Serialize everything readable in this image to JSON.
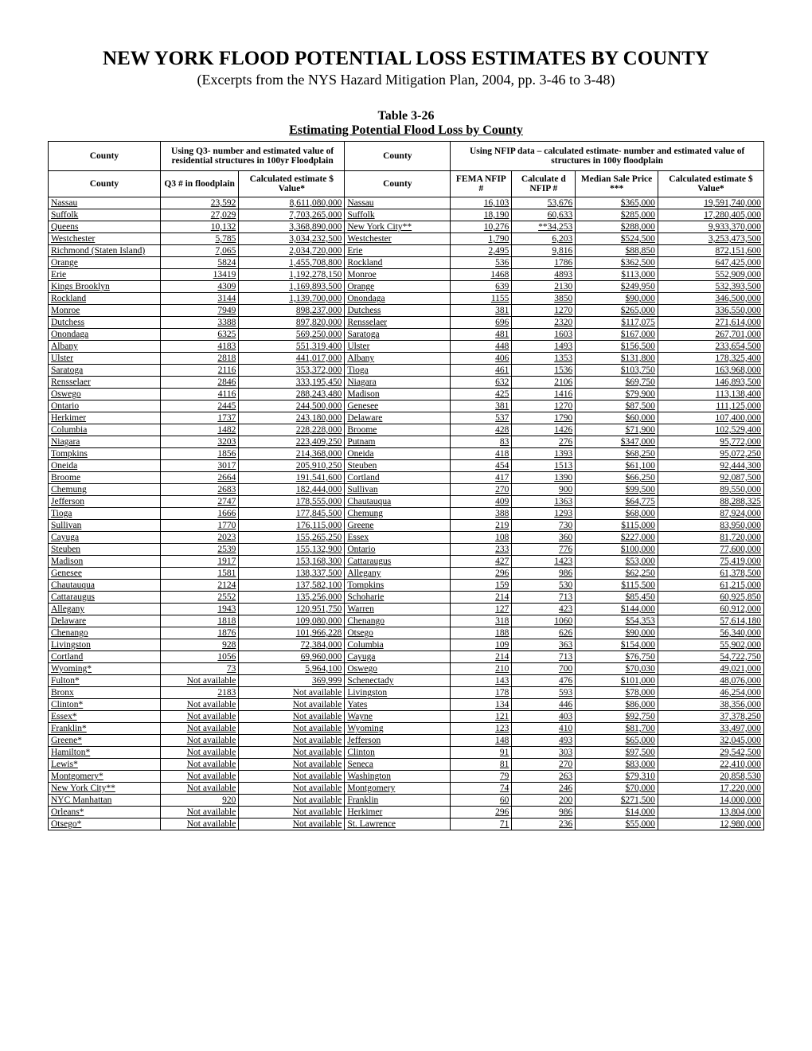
{
  "title": "NEW YORK FLOOD POTENTIAL LOSS ESTIMATES BY COUNTY",
  "subtitle": "(Excerpts from the NYS Hazard Mitigation Plan, 2004, pp. 3-46 to 3-48)",
  "table_label": "Table 3-26",
  "table_caption": "Estimating Potential Flood Loss by County",
  "header_top": {
    "county_left": "County",
    "q3_block": "Using Q3- number and estimated value of residential structures in 100yr Floodplain",
    "county_right": "County",
    "nfip_block": "Using NFIP data – calculated estimate-  number and estimated value of structures in 100y floodplain"
  },
  "header_sub": {
    "county_left": "County",
    "q3": "Q3 # in floodplain",
    "calc1": "Calculated estimate\n$ Value*",
    "county_right": "County",
    "fema": "FEMA NFIP #",
    "calcd": "Calculate d NFIP #",
    "median": "Median Sale Price ***",
    "calc2": "Calculated estimate\n$ Value*"
  },
  "rows": [
    {
      "cl": "Nassau",
      "q3": "23,592",
      "v1": "8,611,080,000",
      "cr": "Nassau",
      "fema": "16,103",
      "cd": "53,676",
      "mp": "$365,000",
      "v2": "19,591,740,000"
    },
    {
      "cl": "Suffolk",
      "q3": "27,029",
      "v1": "7,703,265,000",
      "cr": "Suffolk",
      "fema": "18,190",
      "cd": "60,633",
      "mp": "$285,000",
      "v2": "17,280,405,000"
    },
    {
      "cl": "Queens",
      "q3": "10,132",
      "v1": "3,368,890,000",
      "cr": "New York City**",
      "fema": "10,276",
      "cd": "**34,253",
      "mp": "$288,000",
      "v2": "9,933,370,000"
    },
    {
      "cl": "Westchester",
      "q3": "5,785",
      "v1": "3,034,232,500",
      "cr": "Westchester",
      "fema": "1,790",
      "cd": "6,203",
      "mp": "$524,500",
      "v2": "3,253,473,500"
    },
    {
      "cl": "Richmond (Staten Island)",
      "q3": "7,065",
      "v1": "2,034,720,000",
      "cr": "Erie",
      "fema": "2,495",
      "cd": "9,816",
      "mp": "$88,850",
      "v2": "872,151,600"
    },
    {
      "cl": "Orange",
      "q3": "5824",
      "v1": "1,455,708,800",
      "cr": "Rockland",
      "fema": "536",
      "cd": "1786",
      "mp": "$362,500",
      "v2": "647,425,000"
    },
    {
      "cl": "Erie",
      "q3": "13419",
      "v1": "1,192,278,150",
      "cr": "Monroe",
      "fema": "1468",
      "cd": "4893",
      "mp": "$113,000",
      "v2": "552,909,000"
    },
    {
      "cl": "Kings Brooklyn",
      "q3": "4309",
      "v1": "1,169,893,500",
      "cr": "Orange",
      "fema": "639",
      "cd": "2130",
      "mp": "$249,950",
      "v2": "532,393,500"
    },
    {
      "cl": "Rockland",
      "q3": "3144",
      "v1": "1,139,700,000",
      "cr": "Onondaga",
      "fema": "1155",
      "cd": "3850",
      "mp": "$90,000",
      "v2": "346,500,000"
    },
    {
      "cl": "Monroe",
      "q3": "7949",
      "v1": "898,237,000",
      "cr": "Dutchess",
      "fema": "381",
      "cd": "1270",
      "mp": "$265,000",
      "v2": "336,550,000"
    },
    {
      "cl": "Dutchess",
      "q3": "3388",
      "v1": "897,820,000",
      "cr": "Rensselaer",
      "fema": "696",
      "cd": "2320",
      "mp": "$117,075",
      "v2": "271,614,000"
    },
    {
      "cl": "Onondaga",
      "q3": "6325",
      "v1": "569,250,000",
      "cr": "Saratoga",
      "fema": "481",
      "cd": "1603",
      "mp": "$167,000",
      "v2": "267,701,000"
    },
    {
      "cl": "Albany",
      "q3": "4183",
      "v1": "551,319,400",
      "cr": "Ulster",
      "fema": "448",
      "cd": "1493",
      "mp": "$156,500",
      "v2": "233,654,500"
    },
    {
      "cl": "Ulster",
      "q3": "2818",
      "v1": "441,017,000",
      "cr": "Albany",
      "fema": "406",
      "cd": "1353",
      "mp": "$131,800",
      "v2": "178,325,400"
    },
    {
      "cl": "Saratoga",
      "q3": "2116",
      "v1": "353,372,000",
      "cr": "Tioga",
      "fema": "461",
      "cd": "1536",
      "mp": "$103,750",
      "v2": "163,968,000"
    },
    {
      "cl": "Rensselaer",
      "q3": "2846",
      "v1": "333,195,450",
      "cr": "Niagara",
      "fema": "632",
      "cd": "2106",
      "mp": "$69,750",
      "v2": "146,893,500"
    },
    {
      "cl": "Oswego",
      "q3": "4116",
      "v1": "288,243,480",
      "cr": "Madison",
      "fema": "425",
      "cd": "1416",
      "mp": "$79,900",
      "v2": "113,138,400"
    },
    {
      "cl": "Ontario",
      "q3": "2445",
      "v1": "244,500,000",
      "cr": "Genesee",
      "fema": "381",
      "cd": "1270",
      "mp": "$87,500",
      "v2": "111,125,000"
    },
    {
      "cl": "Herkimer",
      "q3": "1737",
      "v1": "243,180,000",
      "cr": "Delaware",
      "fema": "537",
      "cd": "1790",
      "mp": "$60,000",
      "v2": "107,400,000"
    },
    {
      "cl": "Columbia",
      "q3": "1482",
      "v1": "228,228,000",
      "cr": "Broome",
      "fema": "428",
      "cd": "1426",
      "mp": "$71,900",
      "v2": "102,529,400"
    },
    {
      "cl": "Niagara",
      "q3": "3203",
      "v1": "223,409,250",
      "cr": "Putnam",
      "fema": "83",
      "cd": "276",
      "mp": "$347,000",
      "v2": "95,772,000"
    },
    {
      "cl": "Tompkins",
      "q3": "1856",
      "v1": "214,368,000",
      "cr": "Oneida",
      "fema": "418",
      "cd": "1393",
      "mp": "$68,250",
      "v2": "95,072,250"
    },
    {
      "cl": "Oneida",
      "q3": "3017",
      "v1": "205,910,250",
      "cr": "Steuben",
      "fema": "454",
      "cd": "1513",
      "mp": "$61,100",
      "v2": "92,444,300"
    },
    {
      "cl": "Broome",
      "q3": "2664",
      "v1": "191,541,600",
      "cr": "Cortland",
      "fema": "417",
      "cd": "1390",
      "mp": "$66,250",
      "v2": "92,087,500"
    },
    {
      "cl": "Chemung",
      "q3": "2683",
      "v1": "182,444,000",
      "cr": "Sullivan",
      "fema": "270",
      "cd": "900",
      "mp": "$99,500",
      "v2": "89,550,000"
    },
    {
      "cl": "Jefferson",
      "q3": "2747",
      "v1": "178,555,000",
      "cr": "Chautauqua",
      "fema": "409",
      "cd": "1363",
      "mp": "$64,775",
      "v2": "88,288,325"
    },
    {
      "cl": "Tioga",
      "q3": "1666",
      "v1": "177,845,500",
      "cr": "Chemung",
      "fema": "388",
      "cd": "1293",
      "mp": "$68,000",
      "v2": "87,924,000"
    },
    {
      "cl": "Sullivan",
      "q3": "1770",
      "v1": "176,115,000",
      "cr": "Greene",
      "fema": "219",
      "cd": "730",
      "mp": "$115,000",
      "v2": "83,950,000"
    },
    {
      "cl": "Cayuga",
      "q3": "2023",
      "v1": "155,265,250",
      "cr": "Essex",
      "fema": "108",
      "cd": "360",
      "mp": "$227,000",
      "v2": "81,720,000"
    },
    {
      "cl": "Steuben",
      "q3": "2539",
      "v1": "155,132,900",
      "cr": "Ontario",
      "fema": "233",
      "cd": "776",
      "mp": "$100,000",
      "v2": "77,600,000"
    },
    {
      "cl": "Madison",
      "q3": "1917",
      "v1": "153,168,300",
      "cr": "Cattaraugus",
      "fema": "427",
      "cd": "1423",
      "mp": "$53,000",
      "v2": "75,419,000"
    },
    {
      "cl": "Genesee",
      "q3": "1581",
      "v1": "138,337,500",
      "cr": "Allegany",
      "fema": "296",
      "cd": "986",
      "mp": "$62,250",
      "v2": "61,378,500"
    },
    {
      "cl": "Chautauqua",
      "q3": "2124",
      "v1": "137,582,100",
      "cr": "Tompkins",
      "fema": "159",
      "cd": "530",
      "mp": "$115,500",
      "v2": "61,215,000"
    },
    {
      "cl": "Cattaraugus",
      "q3": "2552",
      "v1": "135,256,000",
      "cr": "Schoharie",
      "fema": "214",
      "cd": "713",
      "mp": "$85,450",
      "v2": "60,925,850"
    },
    {
      "cl": "Allegany",
      "q3": "1943",
      "v1": "120,951,750",
      "cr": "Warren",
      "fema": "127",
      "cd": "423",
      "mp": "$144,000",
      "v2": "60,912,000"
    },
    {
      "cl": "Delaware",
      "q3": "1818",
      "v1": "109,080,000",
      "cr": "Chenango",
      "fema": "318",
      "cd": "1060",
      "mp": "$54,353",
      "v2": "57,614,180"
    },
    {
      "cl": "Chenango",
      "q3": "1876",
      "v1": "101,966,228",
      "cr": "Otsego",
      "fema": "188",
      "cd": "626",
      "mp": "$90,000",
      "v2": "56,340,000"
    },
    {
      "cl": "Livingston",
      "q3": "928",
      "v1": "72,384,000",
      "cr": "Columbia",
      "fema": "109",
      "cd": "363",
      "mp": "$154,000",
      "v2": "55,902,000"
    },
    {
      "cl": "Cortland",
      "q3": "1056",
      "v1": "69,960,000",
      "cr": "Cayuga",
      "fema": "214",
      "cd": "713",
      "mp": "$76,750",
      "v2": "54,722,750"
    },
    {
      "cl": "Wyoming*",
      "q3": "73",
      "v1": "5,964,100",
      "cr": "Oswego",
      "fema": "210",
      "cd": "700",
      "mp": "$70,030",
      "v2": "49,021,000"
    },
    {
      "cl": "Fulton*",
      "q3": "Not available",
      "v1": "369,999",
      "cr": "Schenectady",
      "fema": "143",
      "cd": "476",
      "mp": "$101,000",
      "v2": "48,076,000"
    },
    {
      "cl": "Bronx",
      "q3": "2183",
      "v1": "Not available",
      "cr": "Livingston",
      "fema": "178",
      "cd": "593",
      "mp": "$78,000",
      "v2": "46,254,000"
    },
    {
      "cl": "Clinton*",
      "q3": "Not available",
      "v1": "Not available",
      "cr": "Yates",
      "fema": "134",
      "cd": "446",
      "mp": "$86,000",
      "v2": "38,356,000"
    },
    {
      "cl": "Essex*",
      "q3": "Not available",
      "v1": "Not available",
      "cr": "Wayne",
      "fema": "121",
      "cd": "403",
      "mp": "$92,750",
      "v2": "37,378,250"
    },
    {
      "cl": "Franklin*",
      "q3": "Not available",
      "v1": "Not available",
      "cr": "Wyoming",
      "fema": "123",
      "cd": "410",
      "mp": "$81,700",
      "v2": "33,497,000"
    },
    {
      "cl": "Greene*",
      "q3": "Not available",
      "v1": "Not available",
      "cr": "Jefferson",
      "fema": "148",
      "cd": "493",
      "mp": "$65,000",
      "v2": "32,045,000"
    },
    {
      "cl": "Hamilton*",
      "q3": "Not available",
      "v1": "Not available",
      "cr": "Clinton",
      "fema": "91",
      "cd": "303",
      "mp": "$97,500",
      "v2": "29,542,500"
    },
    {
      "cl": "Lewis*",
      "q3": "Not available",
      "v1": "Not available",
      "cr": "Seneca",
      "fema": "81",
      "cd": "270",
      "mp": "$83,000",
      "v2": "22,410,000"
    },
    {
      "cl": "Montgomery*",
      "q3": "Not available",
      "v1": "Not available",
      "cr": "Washington",
      "fema": "79",
      "cd": "263",
      "mp": "$79,310",
      "v2": "20,858,530"
    },
    {
      "cl": "New York City**",
      "q3": "Not available",
      "v1": "Not available",
      "cr": "Montgomery",
      "fema": "74",
      "cd": "246",
      "mp": "$70,000",
      "v2": "17,220,000"
    },
    {
      "cl": "NYC Manhattan",
      "q3": "920",
      "v1": "Not available",
      "cr": "Franklin",
      "fema": "60",
      "cd": "200",
      "mp": "$271,500",
      "v2": "14,000,000"
    },
    {
      "cl": "Orleans*",
      "q3": "Not available",
      "v1": "Not available",
      "cr": "Herkimer",
      "fema": "296",
      "cd": "986",
      "mp": "$14,000",
      "v2": "13,804,000"
    },
    {
      "cl": "Otsego*",
      "q3": "Not available",
      "v1": "Not available",
      "cr": "St. Lawrence",
      "fema": "71",
      "cd": "236",
      "mp": "$55,000",
      "v2": "12,980,000"
    }
  ]
}
